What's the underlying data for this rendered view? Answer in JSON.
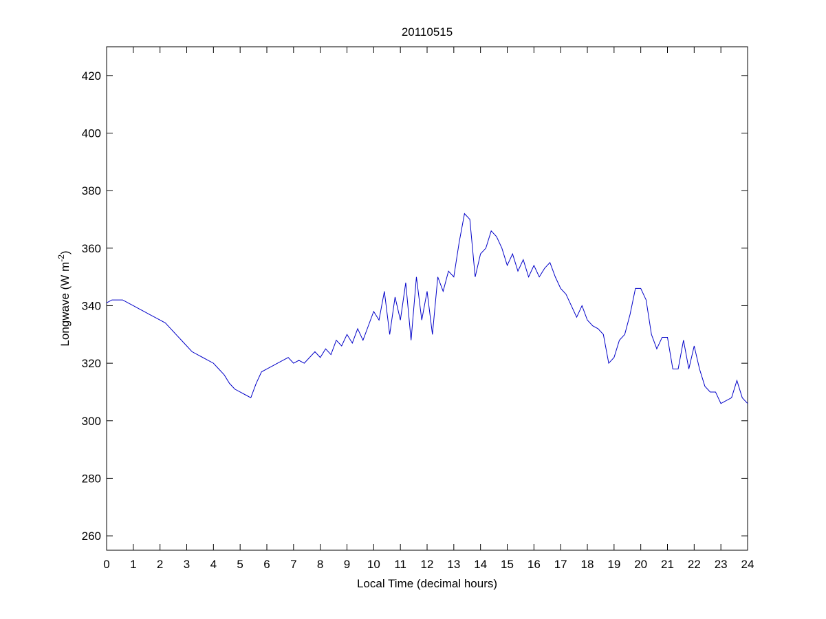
{
  "chart_data": {
    "type": "line",
    "title": "20110515",
    "xlabel": "Local Time (decimal hours)",
    "ylabel": "Longwave (W m",
    "ylabel_sup": "-2",
    "ylabel_end": ")",
    "x": [
      0,
      0.2,
      0.4,
      0.6,
      0.8,
      1,
      1.2,
      1.4,
      1.6,
      1.8,
      2,
      2.2,
      2.4,
      2.6,
      2.8,
      3,
      3.2,
      3.4,
      3.6,
      3.8,
      4,
      4.2,
      4.4,
      4.6,
      4.8,
      5,
      5.2,
      5.4,
      5.6,
      5.8,
      6,
      6.2,
      6.4,
      6.6,
      6.8,
      7,
      7.2,
      7.4,
      7.6,
      7.8,
      8,
      8.2,
      8.4,
      8.6,
      8.8,
      9,
      9.2,
      9.4,
      9.6,
      9.8,
      10,
      10.2,
      10.4,
      10.6,
      10.8,
      11,
      11.2,
      11.4,
      11.6,
      11.8,
      12,
      12.2,
      12.4,
      12.6,
      12.8,
      13,
      13.2,
      13.4,
      13.6,
      13.8,
      14,
      14.2,
      14.4,
      14.6,
      14.8,
      15,
      15.2,
      15.4,
      15.6,
      15.8,
      16,
      16.2,
      16.4,
      16.6,
      16.8,
      17,
      17.2,
      17.4,
      17.6,
      17.8,
      18,
      18.2,
      18.4,
      18.6,
      18.8,
      19,
      19.2,
      19.4,
      19.6,
      19.8,
      20,
      20.2,
      20.4,
      20.6,
      20.8,
      21,
      21.2,
      21.4,
      21.6,
      21.8,
      22,
      22.2,
      22.4,
      22.6,
      22.8,
      23,
      23.2,
      23.4,
      23.6,
      23.8,
      24
    ],
    "series": [
      {
        "color": "#0000c8",
        "values": [
          341,
          342,
          342,
          342,
          341,
          340,
          339,
          338,
          337,
          336,
          335,
          334,
          332,
          330,
          328,
          326,
          324,
          323,
          322,
          321,
          320,
          318,
          316,
          313,
          311,
          310,
          309,
          308,
          313,
          317,
          318,
          319,
          320,
          321,
          322,
          320,
          321,
          320,
          322,
          324,
          322,
          325,
          323,
          328,
          326,
          330,
          327,
          332,
          328,
          333,
          338,
          335,
          345,
          330,
          343,
          335,
          348,
          328,
          350,
          335,
          345,
          330,
          350,
          345,
          352,
          350,
          362,
          372,
          370,
          350,
          358,
          360,
          366,
          364,
          360,
          354,
          358,
          352,
          356,
          350,
          354,
          350,
          353,
          355,
          350,
          346,
          344,
          340,
          336,
          340,
          335,
          333,
          332,
          330,
          320,
          322,
          328,
          330,
          337,
          346,
          346,
          342,
          330,
          325,
          329,
          329,
          318,
          318,
          328,
          318,
          326,
          318,
          312,
          310,
          310,
          306,
          307,
          308,
          314,
          308,
          306
        ]
      }
    ],
    "xlim": [
      0,
      24
    ],
    "ylim": [
      255,
      430
    ],
    "xticks": [
      0,
      1,
      2,
      3,
      4,
      5,
      6,
      7,
      8,
      9,
      10,
      11,
      12,
      13,
      14,
      15,
      16,
      17,
      18,
      19,
      20,
      21,
      22,
      23,
      24
    ],
    "yticks": [
      260,
      280,
      300,
      320,
      340,
      360,
      380,
      400,
      420
    ]
  }
}
